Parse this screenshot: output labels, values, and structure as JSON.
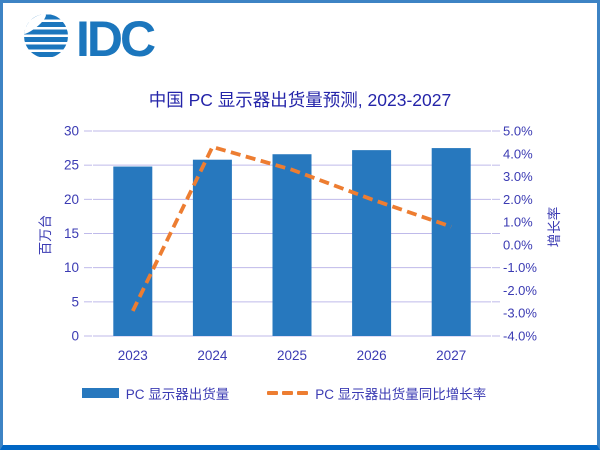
{
  "logo": {
    "text": "IDC",
    "icon": "striped-globe"
  },
  "title": "中国 PC 显示器出货量预测, 2023-2027",
  "chart_data": {
    "type": "combo-bar-line",
    "title": "中国 PC 显示器出货量预测, 2023-2027",
    "categories": [
      "2023",
      "2024",
      "2025",
      "2026",
      "2027"
    ],
    "series": [
      {
        "name": "PC 显示器出货量",
        "type": "bar",
        "axis": "left",
        "unit": "百万台",
        "values": [
          24.8,
          25.8,
          26.6,
          27.2,
          27.5
        ]
      },
      {
        "name": "PC 显示器出货量同比增长率",
        "type": "line",
        "style": "dashed",
        "axis": "right",
        "unit": "%",
        "values": [
          -2.9,
          4.3,
          3.3,
          2.0,
          0.8
        ]
      }
    ],
    "left_axis": {
      "label": "百万台",
      "min": 0,
      "max": 30,
      "step": 5,
      "tick_labels": [
        "0",
        "5",
        "10",
        "15",
        "20",
        "25",
        "30"
      ]
    },
    "right_axis": {
      "label": "增长率",
      "min": -4,
      "max": 5,
      "step": 1,
      "tick_labels": [
        "5.0%",
        "4.0%",
        "3.0%",
        "2.0%",
        "1.0%",
        "0.0%",
        "-1.0%",
        "-2.0%",
        "-3.0%",
        "-4.0%"
      ]
    },
    "grid": true,
    "legend_position": "bottom"
  },
  "legend": {
    "items": [
      {
        "label": "PC 显示器出货量",
        "swatch": "bar"
      },
      {
        "label": "PC 显示器出货量同比增长率",
        "swatch": "dashed-line"
      }
    ]
  },
  "colors": {
    "bar": "#2778be",
    "line": "#ed7d31",
    "title_text": "#2424a9",
    "axis_text": "#3b3bb3",
    "gridline": "#bfbaea",
    "frame": "#3d83c4",
    "frame_bottom": "#0066c4",
    "logo_blue": "#1b76bd"
  }
}
